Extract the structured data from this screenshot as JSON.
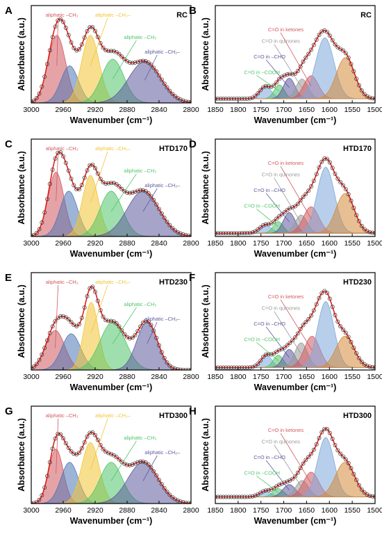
{
  "colors": {
    "red": "#d2585f",
    "blue": "#4f77b4",
    "yellow": "#f2c433",
    "green": "#50c46a",
    "purple": "#5d5a9c",
    "lightblue": "#7ea7da",
    "orange": "#d48a3a",
    "fit": "#e0201b",
    "gray": "#999999"
  },
  "chart_data": [
    {
      "panel": "A",
      "sample": "RC",
      "type": "line",
      "xlabel": "Wavenumber (cm⁻¹)",
      "ylabel": "Absorbance (a.u.)",
      "xlim": [
        3000,
        2800
      ],
      "ylim": [
        0,
        1.18
      ],
      "xticks": [
        3000,
        2960,
        2920,
        2880,
        2840,
        2800
      ],
      "grid": false,
      "peaks": [
        {
          "name": "aliphatic –CH₃",
          "center": 2968,
          "height": 0.82,
          "width": 11,
          "color": "red"
        },
        {
          "name": "",
          "center": 2952,
          "height": 0.45,
          "width": 11,
          "color": "blue"
        },
        {
          "name": "aliphatic –CH₂–",
          "center": 2926,
          "height": 0.82,
          "width": 11,
          "color": "yellow"
        },
        {
          "name": "aliphatic –CH₃",
          "center": 2898,
          "height": 0.53,
          "width": 14,
          "color": "green"
        },
        {
          "name": "aliphatic –CH₂–",
          "center": 2858,
          "height": 0.5,
          "width": 20,
          "color": "purple"
        }
      ],
      "annotations": [
        {
          "text": "aliphatic –CH₃",
          "color": "red"
        },
        {
          "text": "aliphatic –CH₂–",
          "color": "yellow"
        },
        {
          "text": "aliphatic –CH₃",
          "color": "green"
        },
        {
          "text": "aliphatic –CH₂–",
          "color": "purple"
        }
      ]
    },
    {
      "panel": "B",
      "sample": "RC",
      "type": "line",
      "xlabel": "Wavenumber (cm⁻¹)",
      "ylabel": "Absorbance (a.u.)",
      "xlim": [
        1850,
        1500
      ],
      "ylim": [
        0,
        1.18
      ],
      "xticks": [
        1850,
        1800,
        1750,
        1700,
        1650,
        1600,
        1550,
        1500
      ],
      "baseline": 0.05,
      "peaks": [
        {
          "name": "C=O in –COOH",
          "center": 1740,
          "height": 0.15,
          "width": 13,
          "color": "lightblue"
        },
        {
          "name": "",
          "center": 1710,
          "height": 0.17,
          "width": 11,
          "color": "green"
        },
        {
          "name": "C=O in –CHO",
          "center": 1688,
          "height": 0.25,
          "width": 13,
          "color": "purple"
        },
        {
          "name": "C=O in quinones",
          "center": 1660,
          "height": 0.24,
          "width": 13,
          "color": "gray"
        },
        {
          "name": "C=O in ketones",
          "center": 1640,
          "height": 0.28,
          "width": 16,
          "color": "red"
        },
        {
          "name": "",
          "center": 1610,
          "height": 0.74,
          "width": 20,
          "color": "lightblue"
        },
        {
          "name": "",
          "center": 1565,
          "height": 0.5,
          "width": 20,
          "color": "orange"
        }
      ],
      "annotations": [
        {
          "text": "C=O in ketones",
          "color": "red"
        },
        {
          "text": "C=O in quinones",
          "color": "gray"
        },
        {
          "text": "C=O in –CHO",
          "color": "purple"
        },
        {
          "text": "C=O in –COOH",
          "color": "green"
        }
      ]
    },
    {
      "panel": "C",
      "sample": "HTD170",
      "type": "line",
      "xlabel": "Wavenumber (cm⁻¹)",
      "ylabel": "Absorbance (a.u.)",
      "xlim": [
        3000,
        2800
      ],
      "ylim": [
        0,
        1.18
      ],
      "xticks": [
        3000,
        2960,
        2920,
        2880,
        2840,
        2800
      ],
      "peaks": [
        {
          "name": "aliphatic –CH₃",
          "center": 2969,
          "height": 0.78,
          "width": 10,
          "color": "red"
        },
        {
          "name": "",
          "center": 2953,
          "height": 0.55,
          "width": 11,
          "color": "blue"
        },
        {
          "name": "aliphatic –CH₂–",
          "center": 2926,
          "height": 0.74,
          "width": 10,
          "color": "yellow"
        },
        {
          "name": "aliphatic –CH₃",
          "center": 2900,
          "height": 0.55,
          "width": 14,
          "color": "green"
        },
        {
          "name": "aliphatic –CH₂–",
          "center": 2860,
          "height": 0.55,
          "width": 20,
          "color": "purple"
        }
      ],
      "annotations": [
        {
          "text": "aliphatic –CH₃",
          "color": "red"
        },
        {
          "text": "aliphatic –CH₂–",
          "color": "yellow"
        },
        {
          "text": "aliphatic –CH₃",
          "color": "green"
        },
        {
          "text": "aliphatic –CH₂–",
          "color": "purple"
        }
      ]
    },
    {
      "panel": "D",
      "sample": "HTD170",
      "type": "line",
      "xlabel": "Wavenumber (cm⁻¹)",
      "ylabel": "Absorbance (a.u.)",
      "xlim": [
        1850,
        1500
      ],
      "ylim": [
        0,
        1.18
      ],
      "xticks": [
        1850,
        1800,
        1750,
        1700,
        1650,
        1600,
        1550,
        1500
      ],
      "baseline": 0.04,
      "peaks": [
        {
          "name": "C=O in –COOH",
          "center": 1740,
          "height": 0.1,
          "width": 13,
          "color": "lightblue"
        },
        {
          "name": "",
          "center": 1712,
          "height": 0.14,
          "width": 11,
          "color": "green"
        },
        {
          "name": "C=O in –CHO",
          "center": 1688,
          "height": 0.25,
          "width": 13,
          "color": "purple"
        },
        {
          "name": "C=O in quinones",
          "center": 1662,
          "height": 0.22,
          "width": 13,
          "color": "gray"
        },
        {
          "name": "C=O in ketones",
          "center": 1640,
          "height": 0.32,
          "width": 17,
          "color": "red"
        },
        {
          "name": "",
          "center": 1608,
          "height": 0.8,
          "width": 19,
          "color": "lightblue"
        },
        {
          "name": "",
          "center": 1566,
          "height": 0.48,
          "width": 20,
          "color": "orange"
        }
      ],
      "annotations": [
        {
          "text": "C=O in ketones",
          "color": "red"
        },
        {
          "text": "C=O in quinones",
          "color": "gray"
        },
        {
          "text": "C=O in –CHO",
          "color": "purple"
        },
        {
          "text": "C=O in –COOH",
          "color": "green"
        }
      ]
    },
    {
      "panel": "E",
      "sample": "HTD230",
      "type": "line",
      "xlabel": "Wavenumber (cm⁻¹)",
      "ylabel": "Absorbance (a.u.)",
      "xlim": [
        3000,
        2800
      ],
      "ylim": [
        0,
        1.18
      ],
      "xticks": [
        3000,
        2960,
        2920,
        2880,
        2840,
        2800
      ],
      "peaks": [
        {
          "name": "aliphatic –CH₃",
          "center": 2970,
          "height": 0.48,
          "width": 12,
          "color": "red"
        },
        {
          "name": "",
          "center": 2950,
          "height": 0.44,
          "width": 12,
          "color": "blue"
        },
        {
          "name": "aliphatic –CH₂–",
          "center": 2925,
          "height": 0.82,
          "width": 9,
          "color": "yellow"
        },
        {
          "name": "aliphatic –CH₃",
          "center": 2898,
          "height": 0.58,
          "width": 16,
          "color": "green"
        },
        {
          "name": "aliphatic –CH₂–",
          "center": 2855,
          "height": 0.58,
          "width": 13,
          "color": "purple"
        }
      ],
      "annotations": [
        {
          "text": "aliphatic –CH₃",
          "color": "red"
        },
        {
          "text": "aliphatic –CH₂–",
          "color": "yellow"
        },
        {
          "text": "aliphatic –CH₃",
          "color": "green"
        },
        {
          "text": "aliphatic –CH₂–",
          "color": "purple"
        }
      ]
    },
    {
      "panel": "F",
      "sample": "HTD230",
      "type": "line",
      "xlabel": "Wavenumber (cm⁻¹)",
      "ylabel": "Absorbance (a.u.)",
      "xlim": [
        1850,
        1500
      ],
      "ylim": [
        0,
        1.18
      ],
      "xticks": [
        1850,
        1800,
        1750,
        1700,
        1650,
        1600,
        1550,
        1500
      ],
      "baseline": 0.03,
      "peaks": [
        {
          "name": "C=O in –COOH",
          "center": 1738,
          "height": 0.15,
          "width": 12,
          "color": "lightblue"
        },
        {
          "name": "",
          "center": 1712,
          "height": 0.15,
          "width": 11,
          "color": "green"
        },
        {
          "name": "C=O in –CHO",
          "center": 1688,
          "height": 0.22,
          "width": 13,
          "color": "purple"
        },
        {
          "name": "C=O in quinones",
          "center": 1662,
          "height": 0.3,
          "width": 14,
          "color": "gray"
        },
        {
          "name": "C=O in ketones",
          "center": 1638,
          "height": 0.38,
          "width": 17,
          "color": "red"
        },
        {
          "name": "",
          "center": 1608,
          "height": 0.8,
          "width": 18,
          "color": "lightblue"
        },
        {
          "name": "",
          "center": 1566,
          "height": 0.38,
          "width": 20,
          "color": "orange"
        }
      ],
      "annotations": [
        {
          "text": "C=O in ketones",
          "color": "red"
        },
        {
          "text": "C=O in quinones",
          "color": "gray"
        },
        {
          "text": "C=O in –CHO",
          "color": "purple"
        },
        {
          "text": "C=O in –COOH",
          "color": "green"
        }
      ]
    },
    {
      "panel": "G",
      "sample": "HTD300",
      "type": "line",
      "xlabel": "Wavenumber (cm⁻¹)",
      "ylabel": "Absorbance (a.u.)",
      "xlim": [
        3000,
        2800
      ],
      "ylim": [
        0,
        1.18
      ],
      "xticks": [
        3000,
        2960,
        2920,
        2880,
        2840,
        2800
      ],
      "peaks": [
        {
          "name": "aliphatic –CH₃",
          "center": 2969,
          "height": 0.66,
          "width": 9,
          "color": "red"
        },
        {
          "name": "",
          "center": 2952,
          "height": 0.5,
          "width": 11,
          "color": "blue"
        },
        {
          "name": "aliphatic –CH₂–",
          "center": 2926,
          "height": 0.74,
          "width": 11,
          "color": "yellow"
        },
        {
          "name": "aliphatic –CH₃",
          "center": 2900,
          "height": 0.5,
          "width": 14,
          "color": "green"
        },
        {
          "name": "aliphatic –CH₂–",
          "center": 2860,
          "height": 0.5,
          "width": 19,
          "color": "purple"
        }
      ],
      "annotations": [
        {
          "text": "aliphatic –CH₃",
          "color": "red"
        },
        {
          "text": "aliphatic –CH₂–",
          "color": "yellow"
        },
        {
          "text": "aliphatic –CH₃",
          "color": "green"
        },
        {
          "text": "aliphatic –CH₂–",
          "color": "purple"
        }
      ]
    },
    {
      "panel": "H",
      "sample": "HTD300",
      "type": "line",
      "xlabel": "Wavenumber (cm⁻¹)",
      "ylabel": "Absorbance (a.u.)",
      "xlim": [
        1850,
        1500
      ],
      "ylim": [
        0,
        1.18
      ],
      "xticks": [
        1850,
        1800,
        1750,
        1700,
        1650,
        1600,
        1550,
        1500
      ],
      "baseline": 0.08,
      "peaks": [
        {
          "name": "C=O in –COOH",
          "center": 1740,
          "height": 0.07,
          "width": 13,
          "color": "lightblue"
        },
        {
          "name": "",
          "center": 1712,
          "height": 0.1,
          "width": 12,
          "color": "green"
        },
        {
          "name": "C=O in –CHO",
          "center": 1688,
          "height": 0.15,
          "width": 14,
          "color": "purple"
        },
        {
          "name": "C=O in quinones",
          "center": 1660,
          "height": 0.2,
          "width": 14,
          "color": "gray"
        },
        {
          "name": "C=O in ketones",
          "center": 1640,
          "height": 0.3,
          "width": 17,
          "color": "red"
        },
        {
          "name": "",
          "center": 1608,
          "height": 0.72,
          "width": 18,
          "color": "lightblue"
        },
        {
          "name": "",
          "center": 1566,
          "height": 0.42,
          "width": 21,
          "color": "orange"
        }
      ],
      "annotations": [
        {
          "text": "C=O in ketones",
          "color": "red"
        },
        {
          "text": "C=O in quinones",
          "color": "gray"
        },
        {
          "text": "C=O in –CHO",
          "color": "purple"
        },
        {
          "text": "C=O in –COOH",
          "color": "green"
        }
      ]
    }
  ]
}
